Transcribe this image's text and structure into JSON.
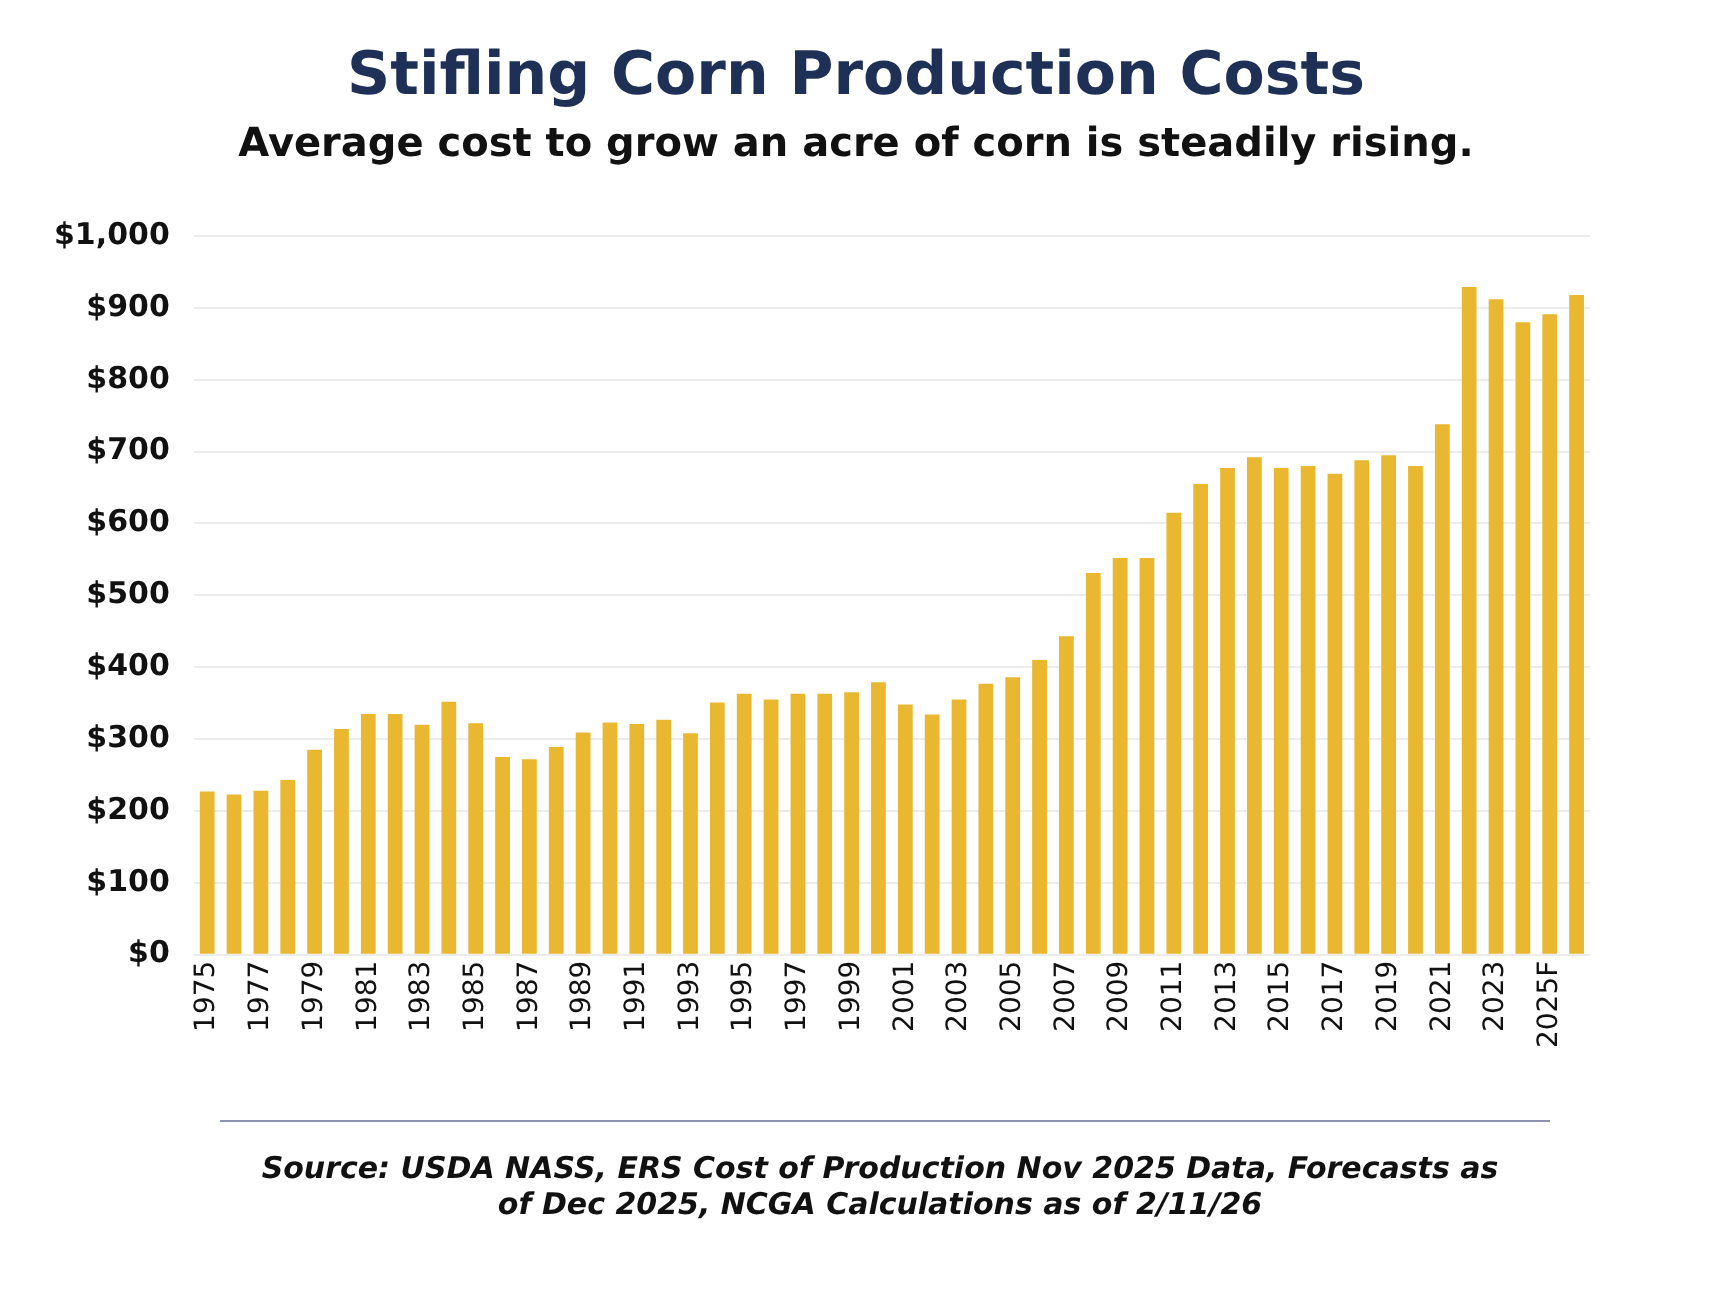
{
  "chart_data": {
    "type": "bar",
    "title": "Stifling Corn Production Costs",
    "subtitle": "Average cost to grow an acre of corn is steadily rising.",
    "categories": [
      "1975",
      null,
      "1977",
      null,
      "1979",
      null,
      "1981",
      null,
      "1983",
      null,
      "1985",
      null,
      "1987",
      null,
      "1989",
      null,
      "1991",
      null,
      "1993",
      null,
      "1995",
      null,
      "1997",
      null,
      "1999",
      null,
      "2001",
      null,
      "2003",
      null,
      "2005",
      null,
      "2007",
      null,
      "2009",
      null,
      "2011",
      null,
      "2013",
      null,
      "2015",
      null,
      "2017",
      null,
      "2019",
      null,
      "2021",
      null,
      "2023",
      null,
      "2025F",
      null
    ],
    "values": [
      227,
      223,
      228,
      243,
      285,
      314,
      335,
      335,
      320,
      352,
      322,
      275,
      272,
      289,
      309,
      323,
      321,
      327,
      308,
      351,
      363,
      355,
      363,
      363,
      365,
      379,
      348,
      334,
      355,
      377,
      386,
      410,
      443,
      531,
      552,
      552,
      615,
      655,
      677,
      692,
      677,
      680,
      669,
      688,
      695,
      680,
      738,
      929,
      912,
      880,
      891,
      918
    ],
    "color": "#e9b730",
    "ylim": [
      0,
      1000
    ],
    "yticks": [
      {
        "value": 0,
        "label": "$0"
      },
      {
        "value": 100,
        "label": "$100"
      },
      {
        "value": 200,
        "label": "$200"
      },
      {
        "value": 300,
        "label": "$300"
      },
      {
        "value": 400,
        "label": "$400"
      },
      {
        "value": 500,
        "label": "$500"
      },
      {
        "value": 600,
        "label": "$600"
      },
      {
        "value": 700,
        "label": "$700"
      },
      {
        "value": 800,
        "label": "$800"
      },
      {
        "value": 900,
        "label": "$900"
      },
      {
        "value": 1000,
        "label": "$1,000"
      }
    ],
    "grid": "y",
    "annotations": [
      "Source: USDA NASS, ERS Cost of Production Nov 2025 Data, Forecasts as of Dec 2025, NCGA Calculations as of 2/11/26"
    ]
  }
}
